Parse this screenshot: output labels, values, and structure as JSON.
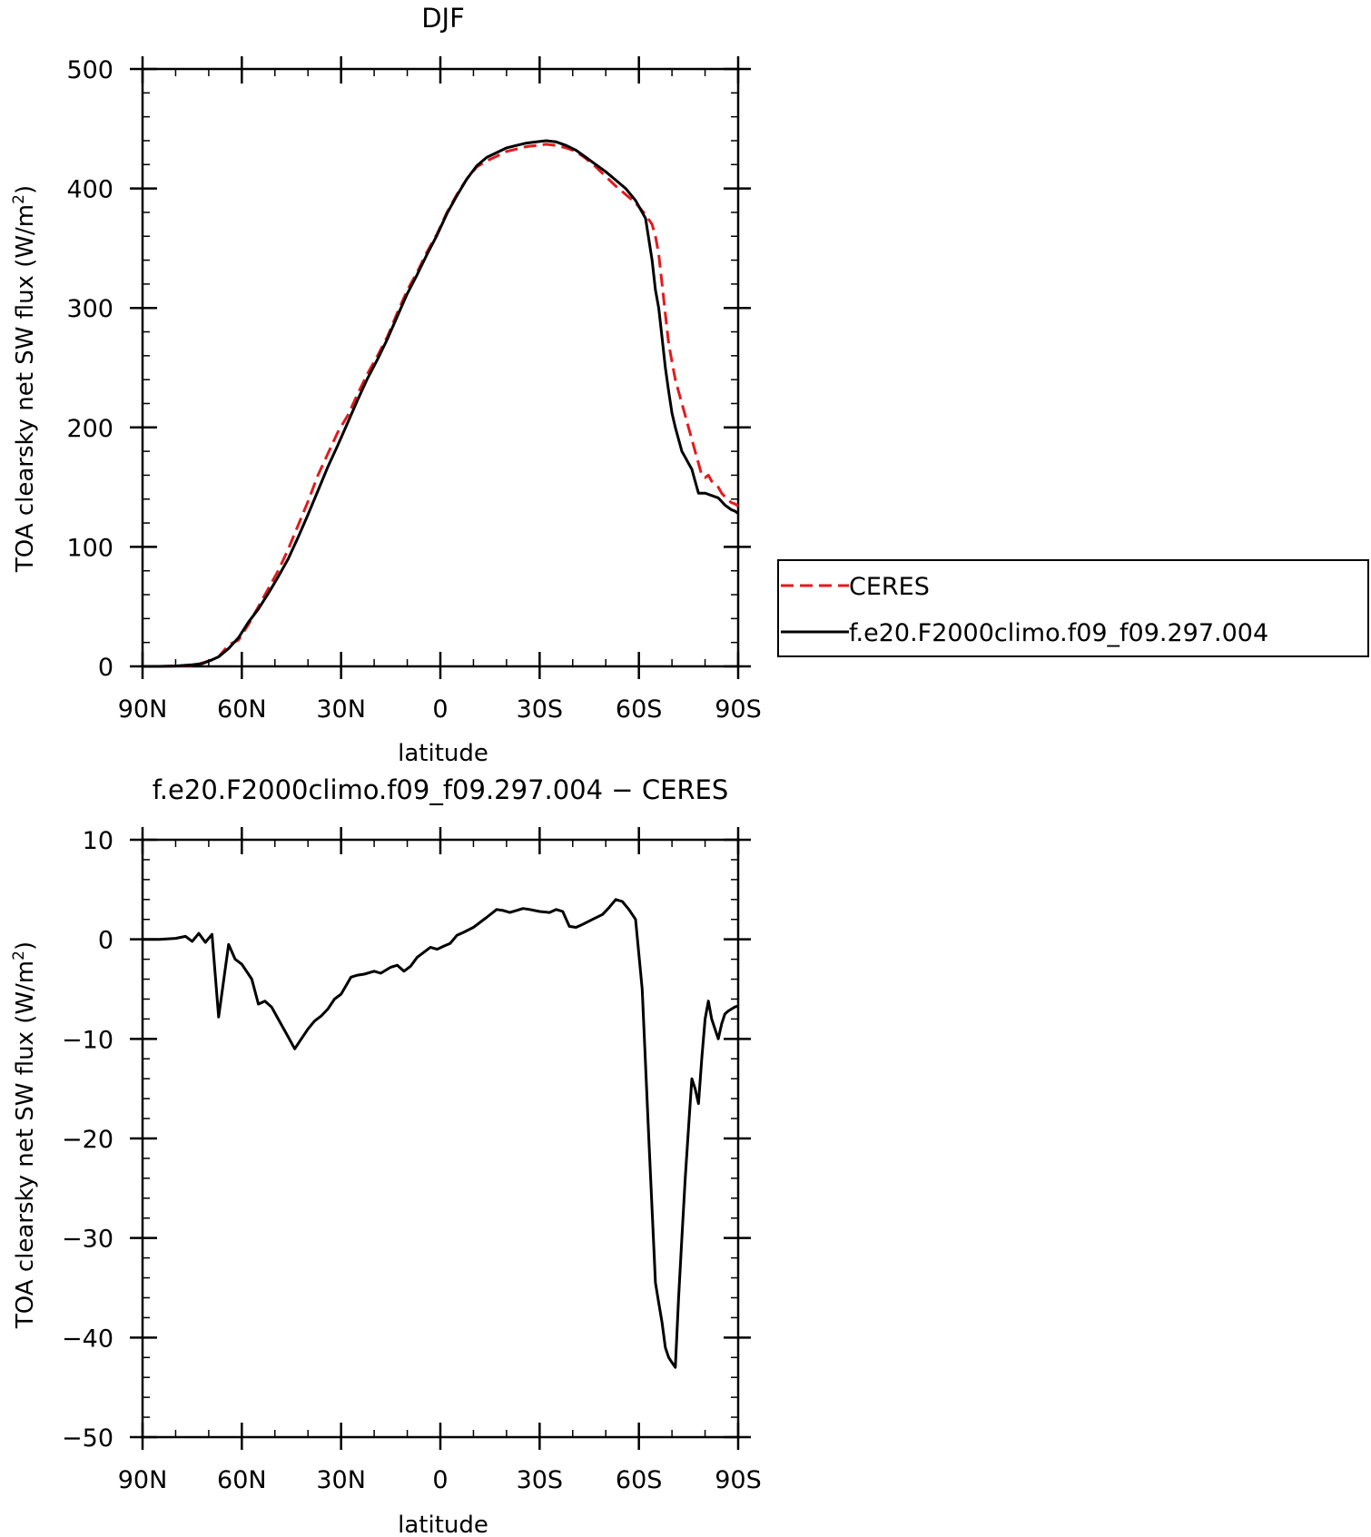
{
  "chart_data": [
    {
      "type": "line",
      "title": "DJF",
      "xlabel": "latitude",
      "ylabel": "TOA clearsky net SW flux (W/m",
      "ylabel_sup": "2",
      "ylabel_end": ")",
      "xlim": [
        -90,
        90
      ],
      "ylim": [
        0,
        500
      ],
      "x_ticks": [
        {
          "value": -90,
          "label": "90N"
        },
        {
          "value": -60,
          "label": "60N"
        },
        {
          "value": -30,
          "label": "30N"
        },
        {
          "value": 0,
          "label": "0"
        },
        {
          "value": 30,
          "label": "30S"
        },
        {
          "value": 60,
          "label": "60S"
        },
        {
          "value": 90,
          "label": "90S"
        }
      ],
      "y_ticks": [
        {
          "value": 0,
          "label": "0"
        },
        {
          "value": 100,
          "label": "100"
        },
        {
          "value": 200,
          "label": "200"
        },
        {
          "value": 300,
          "label": "300"
        },
        {
          "value": 400,
          "label": "400"
        },
        {
          "value": 500,
          "label": "500"
        }
      ],
      "y_minor_step": 20,
      "x_minor_step": 10,
      "legend": {
        "placement": "right"
      },
      "series": [
        {
          "name": "CERES",
          "color": "#e31a1c",
          "dash": "dashed",
          "x": [
            -90,
            -85,
            -80,
            -75,
            -72,
            -69,
            -67,
            -64,
            -61,
            -58,
            -55,
            -52,
            -49,
            -46,
            -43,
            -40,
            -37,
            -34,
            -31,
            -28,
            -25,
            -22,
            -19,
            -16,
            -13,
            -10,
            -7,
            -4,
            -1,
            2,
            5,
            8,
            11,
            14,
            17,
            20,
            23,
            26,
            29,
            32,
            35,
            38,
            41,
            44,
            47,
            50,
            53,
            56,
            59,
            62,
            64,
            65,
            66,
            67,
            68,
            69,
            70,
            71,
            72,
            73,
            74,
            75,
            76,
            77,
            78,
            79,
            80,
            81,
            82,
            84,
            85,
            86,
            87,
            88,
            89,
            90
          ],
          "values": [
            0,
            0,
            0.3,
            1,
            2.8,
            5.5,
            8,
            18,
            22,
            35,
            50,
            65,
            80,
            98,
            118,
            138,
            160,
            178,
            196,
            210,
            228,
            245,
            260,
            276,
            296,
            315,
            330,
            347,
            362,
            380,
            395,
            408,
            418,
            423,
            427,
            431,
            433,
            435,
            436,
            437,
            436,
            434,
            431,
            425,
            418,
            410,
            402,
            395,
            388,
            378,
            370,
            360,
            345,
            320,
            295,
            270,
            255,
            240,
            230,
            220,
            210,
            200,
            190,
            180,
            170,
            160,
            158,
            160,
            155,
            150,
            145,
            142,
            139,
            137,
            136,
            134
          ]
        },
        {
          "name": "f.e20.F2000climo.f09_f09.297.004",
          "color": "#000000",
          "dash": "solid",
          "x": [
            -90,
            -85,
            -80,
            -75,
            -72,
            -69,
            -67,
            -64,
            -61,
            -58,
            -55,
            -52,
            -49,
            -46,
            -43,
            -40,
            -37,
            -34,
            -31,
            -28,
            -25,
            -22,
            -19,
            -16,
            -13,
            -10,
            -7,
            -4,
            -1,
            2,
            5,
            8,
            11,
            14,
            17,
            20,
            23,
            26,
            29,
            32,
            35,
            38,
            41,
            44,
            47,
            50,
            53,
            56,
            59,
            62,
            64,
            65,
            66,
            67,
            68,
            69,
            70,
            71,
            72,
            73,
            74,
            75,
            76,
            77,
            78,
            79,
            80,
            81,
            82,
            84,
            85,
            86,
            87,
            88,
            89,
            90
          ],
          "values": [
            0,
            0,
            0.3,
            1.3,
            2.3,
            5.5,
            8,
            15,
            24,
            37,
            48,
            61,
            75,
            90,
            108,
            127,
            147,
            167,
            185,
            204,
            223,
            241,
            257,
            274,
            293,
            312,
            328,
            345,
            361,
            379,
            394,
            408,
            419,
            426,
            430,
            434,
            436,
            438,
            439,
            440,
            439,
            436,
            432,
            426,
            420,
            414,
            407,
            400,
            390,
            375,
            340,
            315,
            300,
            275,
            250,
            230,
            212,
            200,
            190,
            180,
            175,
            170,
            165,
            155,
            145,
            145,
            145,
            144,
            143,
            141,
            138,
            135,
            133,
            131,
            130,
            128
          ]
        }
      ]
    },
    {
      "type": "line",
      "title": "f.e20.F2000climo.f09_f09.297.004 − CERES",
      "xlabel": "latitude",
      "ylabel": "TOA clearsky net SW flux (W/m",
      "ylabel_sup": "2",
      "ylabel_end": ")",
      "xlim": [
        -90,
        90
      ],
      "ylim": [
        -50,
        10
      ],
      "x_ticks": [
        {
          "value": -90,
          "label": "90N"
        },
        {
          "value": -60,
          "label": "60N"
        },
        {
          "value": -30,
          "label": "30N"
        },
        {
          "value": 0,
          "label": "0"
        },
        {
          "value": 30,
          "label": "30S"
        },
        {
          "value": 60,
          "label": "60S"
        },
        {
          "value": 90,
          "label": "90S"
        }
      ],
      "y_ticks": [
        {
          "value": -50,
          "label": "−50"
        },
        {
          "value": -40,
          "label": "−40"
        },
        {
          "value": -30,
          "label": "−30"
        },
        {
          "value": -20,
          "label": "−20"
        },
        {
          "value": -10,
          "label": "−10"
        },
        {
          "value": 0,
          "label": "0"
        },
        {
          "value": 10,
          "label": "10"
        }
      ],
      "y_minor_step": 2,
      "x_minor_step": 10,
      "series": [
        {
          "name": "f.e20.F2000climo.f09_f09.297.004 − CERES",
          "color": "#000000",
          "dash": "solid",
          "x": [
            -90,
            -85,
            -80,
            -77,
            -75,
            -73,
            -71,
            -69,
            -67,
            -64,
            -62,
            -60,
            -57,
            -55,
            -53,
            -51,
            -49,
            -46,
            -44,
            -42,
            -40,
            -38,
            -36,
            -34,
            -32,
            -30,
            -27,
            -25,
            -23,
            -20,
            -18,
            -15,
            -13,
            -11,
            -9,
            -7,
            -5,
            -3,
            -1,
            1,
            3,
            5,
            7,
            10,
            12,
            14,
            17,
            19,
            21,
            23,
            25,
            27,
            30,
            33,
            35,
            37,
            39,
            41,
            43,
            46,
            49,
            51,
            53,
            55,
            57,
            59,
            61,
            63,
            65,
            66,
            67,
            68,
            69,
            70,
            71,
            72,
            73,
            74,
            75,
            76,
            77,
            78,
            79,
            80,
            81,
            82,
            84,
            85,
            86,
            87,
            88,
            89,
            90
          ],
          "values": [
            0,
            0,
            0.1,
            0.3,
            -0.2,
            0.6,
            -0.3,
            0.5,
            -7.8,
            -0.5,
            -2,
            -2.5,
            -4,
            -6.5,
            -6.2,
            -6.8,
            -8,
            -9.8,
            -11,
            -10,
            -9,
            -8.2,
            -7.7,
            -7,
            -6,
            -5.5,
            -3.8,
            -3.6,
            -3.5,
            -3.2,
            -3.4,
            -2.8,
            -2.6,
            -3.2,
            -2.7,
            -1.8,
            -1.3,
            -0.8,
            -1,
            -0.7,
            -0.4,
            0.4,
            0.7,
            1.2,
            1.7,
            2.2,
            3,
            2.9,
            2.7,
            2.9,
            3.1,
            3,
            2.8,
            2.7,
            3,
            2.8,
            1.3,
            1.2,
            1.5,
            2,
            2.5,
            3.2,
            4,
            3.8,
            3,
            2,
            -5,
            -20,
            -34.5,
            -36.5,
            -38.5,
            -41,
            -42,
            -42.5,
            -43,
            -36,
            -30,
            -24,
            -19,
            -14,
            -15,
            -16.5,
            -12,
            -8,
            -6.2,
            -8,
            -10,
            -8.5,
            -7.5,
            -7.2,
            -7,
            -6.8,
            -6.7
          ]
        }
      ]
    }
  ]
}
